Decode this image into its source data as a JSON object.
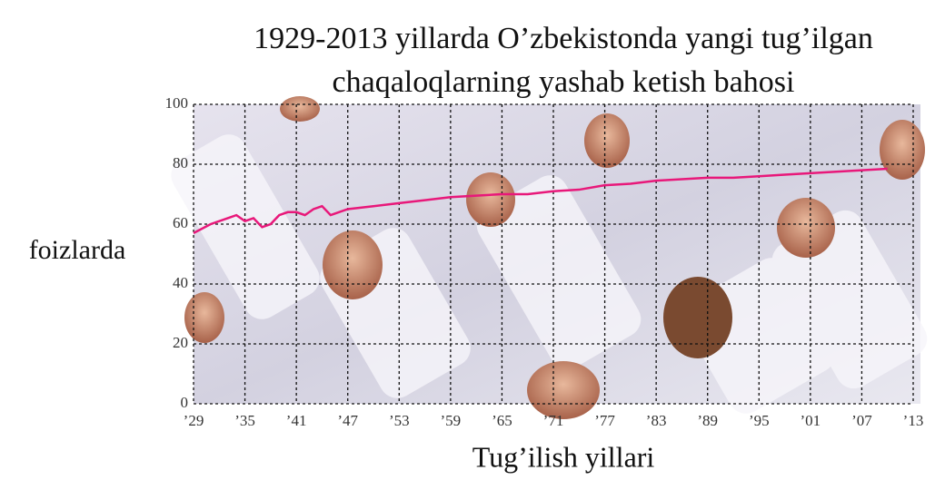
{
  "chart_data": {
    "type": "line",
    "title": [
      "1929-2013 yillarda O’zbekistonda yangi tug’ilgan",
      "chaqaloqlarning yashab ketish bahosi"
    ],
    "x_label": "Tug’ilish yillari",
    "y_label": "foizlarda",
    "x": [
      1929,
      1931,
      1933,
      1934,
      1935,
      1936,
      1937,
      1938,
      1939,
      1940,
      1941,
      1942,
      1943,
      1944,
      1945,
      1947,
      1950,
      1953,
      1956,
      1959,
      1962,
      1965,
      1968,
      1971,
      1974,
      1977,
      1980,
      1983,
      1986,
      1989,
      1992,
      1995,
      1998,
      2001,
      2004,
      2007,
      2010
    ],
    "series": [
      {
        "color": "#e8187a",
        "values": [
          57,
          60,
          62,
          63,
          61,
          62,
          59,
          60,
          63,
          64,
          64,
          63,
          65,
          66,
          63,
          65,
          66,
          67,
          68,
          69,
          69.5,
          70,
          70,
          71,
          71.5,
          73,
          73.5,
          74.5,
          75,
          75.5,
          75.5,
          76,
          76.5,
          77,
          77.5,
          78,
          78.5
        ]
      }
    ],
    "xlim": [
      1929,
      2013
    ],
    "xticks": [
      {
        "value": 1929,
        "label": "’29"
      },
      {
        "value": 1935,
        "label": "’35"
      },
      {
        "value": 1941,
        "label": "’41"
      },
      {
        "value": 1947,
        "label": "’47"
      },
      {
        "value": 1953,
        "label": "’53"
      },
      {
        "value": 1959,
        "label": "’59"
      },
      {
        "value": 1965,
        "label": "’65"
      },
      {
        "value": 1971,
        "label": "’71"
      },
      {
        "value": 1977,
        "label": "’77"
      },
      {
        "value": 1983,
        "label": "’83"
      },
      {
        "value": 1989,
        "label": "’89"
      },
      {
        "value": 1995,
        "label": "’95"
      },
      {
        "value": 2001,
        "label": "’01"
      },
      {
        "value": 2007,
        "label": "’07"
      },
      {
        "value": 2013,
        "label": "’13"
      }
    ],
    "ylim": [
      0,
      100
    ],
    "yticks": [
      0,
      20,
      40,
      60,
      80,
      100
    ],
    "grid": true
  }
}
